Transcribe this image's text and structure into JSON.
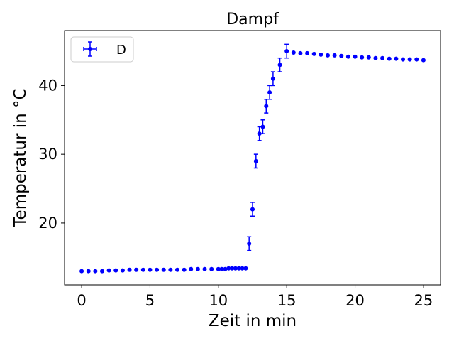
{
  "chart_data": {
    "type": "scatter",
    "title": "Dampf",
    "xlabel": "Zeit in min",
    "ylabel": "Temperatur in °C",
    "xlim": [
      -1.25,
      26.25
    ],
    "ylim": [
      11,
      48
    ],
    "xticks": [
      0,
      5,
      10,
      15,
      20,
      25
    ],
    "yticks": [
      20,
      30,
      40
    ],
    "grid": false,
    "legend_position": "upper-left",
    "color": "#0000ff",
    "series": [
      {
        "name": "D",
        "points": [
          {
            "x": 0,
            "y": 13.0,
            "err": 0.1
          },
          {
            "x": 0.5,
            "y": 13.0,
            "err": 0.1
          },
          {
            "x": 1,
            "y": 13.0,
            "err": 0.1
          },
          {
            "x": 1.5,
            "y": 13.0,
            "err": 0.1
          },
          {
            "x": 2,
            "y": 13.1,
            "err": 0.1
          },
          {
            "x": 2.5,
            "y": 13.1,
            "err": 0.1
          },
          {
            "x": 3,
            "y": 13.1,
            "err": 0.1
          },
          {
            "x": 3.5,
            "y": 13.2,
            "err": 0.1
          },
          {
            "x": 4,
            "y": 13.2,
            "err": 0.1
          },
          {
            "x": 4.5,
            "y": 13.2,
            "err": 0.1
          },
          {
            "x": 5,
            "y": 13.2,
            "err": 0.1
          },
          {
            "x": 5.5,
            "y": 13.2,
            "err": 0.1
          },
          {
            "x": 6,
            "y": 13.2,
            "err": 0.1
          },
          {
            "x": 6.5,
            "y": 13.2,
            "err": 0.1
          },
          {
            "x": 7,
            "y": 13.2,
            "err": 0.1
          },
          {
            "x": 7.5,
            "y": 13.2,
            "err": 0.1
          },
          {
            "x": 8,
            "y": 13.3,
            "err": 0.1
          },
          {
            "x": 8.5,
            "y": 13.3,
            "err": 0.1
          },
          {
            "x": 9,
            "y": 13.3,
            "err": 0.1
          },
          {
            "x": 9.5,
            "y": 13.3,
            "err": 0.1
          },
          {
            "x": 10,
            "y": 13.3,
            "err": 0.1
          },
          {
            "x": 10.25,
            "y": 13.3,
            "err": 0.1
          },
          {
            "x": 10.5,
            "y": 13.3,
            "err": 0.1
          },
          {
            "x": 10.75,
            "y": 13.4,
            "err": 0.1
          },
          {
            "x": 11,
            "y": 13.4,
            "err": 0.1
          },
          {
            "x": 11.25,
            "y": 13.4,
            "err": 0.1
          },
          {
            "x": 11.5,
            "y": 13.4,
            "err": 0.1
          },
          {
            "x": 11.75,
            "y": 13.4,
            "err": 0.1
          },
          {
            "x": 12,
            "y": 13.4,
            "err": 0.1
          },
          {
            "x": 12.25,
            "y": 17.0,
            "err": 1.0
          },
          {
            "x": 12.5,
            "y": 22.0,
            "err": 1.0
          },
          {
            "x": 12.75,
            "y": 29.0,
            "err": 1.0
          },
          {
            "x": 13,
            "y": 33.0,
            "err": 1.0
          },
          {
            "x": 13.25,
            "y": 34.0,
            "err": 1.0
          },
          {
            "x": 13.5,
            "y": 37.0,
            "err": 1.0
          },
          {
            "x": 13.75,
            "y": 39.0,
            "err": 1.0
          },
          {
            "x": 14,
            "y": 41.0,
            "err": 1.0
          },
          {
            "x": 14.5,
            "y": 43.0,
            "err": 1.0
          },
          {
            "x": 15,
            "y": 45.0,
            "err": 1.0
          },
          {
            "x": 15.5,
            "y": 44.8,
            "err": 0.1
          },
          {
            "x": 16,
            "y": 44.7,
            "err": 0.1
          },
          {
            "x": 16.5,
            "y": 44.7,
            "err": 0.1
          },
          {
            "x": 17,
            "y": 44.6,
            "err": 0.1
          },
          {
            "x": 17.5,
            "y": 44.5,
            "err": 0.1
          },
          {
            "x": 18,
            "y": 44.4,
            "err": 0.1
          },
          {
            "x": 18.5,
            "y": 44.4,
            "err": 0.1
          },
          {
            "x": 19,
            "y": 44.3,
            "err": 0.1
          },
          {
            "x": 19.5,
            "y": 44.2,
            "err": 0.1
          },
          {
            "x": 20,
            "y": 44.2,
            "err": 0.1
          },
          {
            "x": 20.5,
            "y": 44.1,
            "err": 0.1
          },
          {
            "x": 21,
            "y": 44.1,
            "err": 0.1
          },
          {
            "x": 21.5,
            "y": 44.0,
            "err": 0.1
          },
          {
            "x": 22,
            "y": 44.0,
            "err": 0.1
          },
          {
            "x": 22.5,
            "y": 43.9,
            "err": 0.1
          },
          {
            "x": 23,
            "y": 43.9,
            "err": 0.1
          },
          {
            "x": 23.5,
            "y": 43.8,
            "err": 0.1
          },
          {
            "x": 24,
            "y": 43.8,
            "err": 0.1
          },
          {
            "x": 24.5,
            "y": 43.8,
            "err": 0.1
          },
          {
            "x": 25,
            "y": 43.7,
            "err": 0.1
          }
        ]
      }
    ]
  }
}
